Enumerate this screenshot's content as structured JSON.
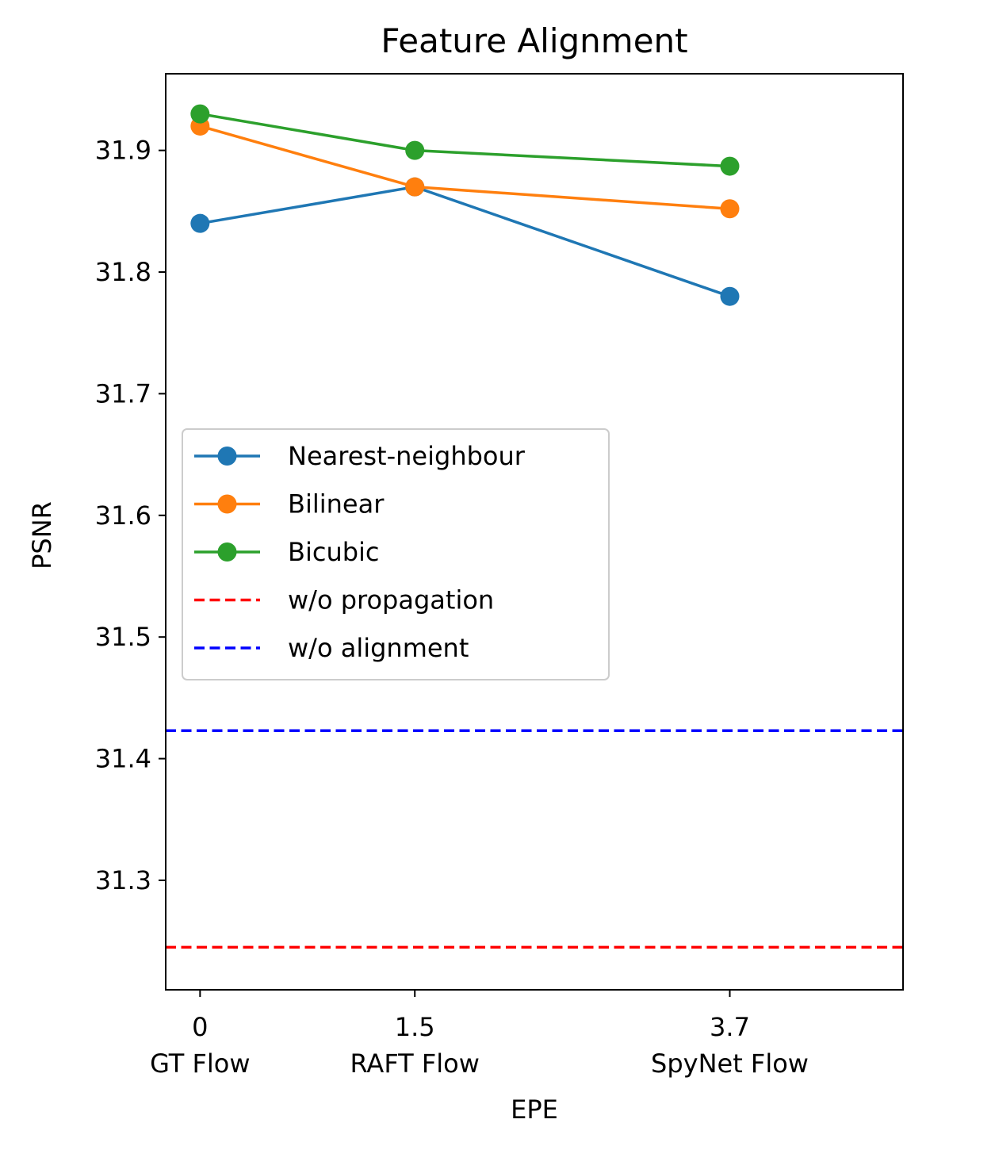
{
  "chart_data": {
    "type": "line",
    "title": "Feature Alignment",
    "xlabel": "EPE",
    "ylabel": "PSNR",
    "x": [
      0,
      1.5,
      3.7
    ],
    "x_tick_labels": [
      {
        "value": "0",
        "name": "GT Flow"
      },
      {
        "value": "1.5",
        "name": "RAFT Flow"
      },
      {
        "value": "3.7",
        "name": "SpyNet Flow"
      }
    ],
    "y_ticks": [
      "31.3",
      "31.4",
      "31.5",
      "31.6",
      "31.7",
      "31.8",
      "31.9"
    ],
    "ylim": [
      31.21,
      31.963
    ],
    "xlim": [
      -0.24,
      4.91
    ],
    "grid": false,
    "legend_position": "center-left",
    "series": [
      {
        "name": "Nearest-neighbour",
        "color": "#1f77b4",
        "style": "solid",
        "marker": "circle",
        "values": [
          31.84,
          31.87,
          31.78
        ]
      },
      {
        "name": "Bilinear",
        "color": "#ff7f0e",
        "style": "solid",
        "marker": "circle",
        "values": [
          31.92,
          31.87,
          31.852
        ]
      },
      {
        "name": "Bicubic",
        "color": "#2ca02c",
        "style": "solid",
        "marker": "circle",
        "values": [
          31.93,
          31.9,
          31.887
        ]
      }
    ],
    "reference_lines": [
      {
        "name": "w/o propagation",
        "color": "#ff0000",
        "style": "dashed",
        "value": 31.245
      },
      {
        "name": "w/o alignment",
        "color": "#0000ff",
        "style": "dashed",
        "value": 31.423
      }
    ]
  }
}
